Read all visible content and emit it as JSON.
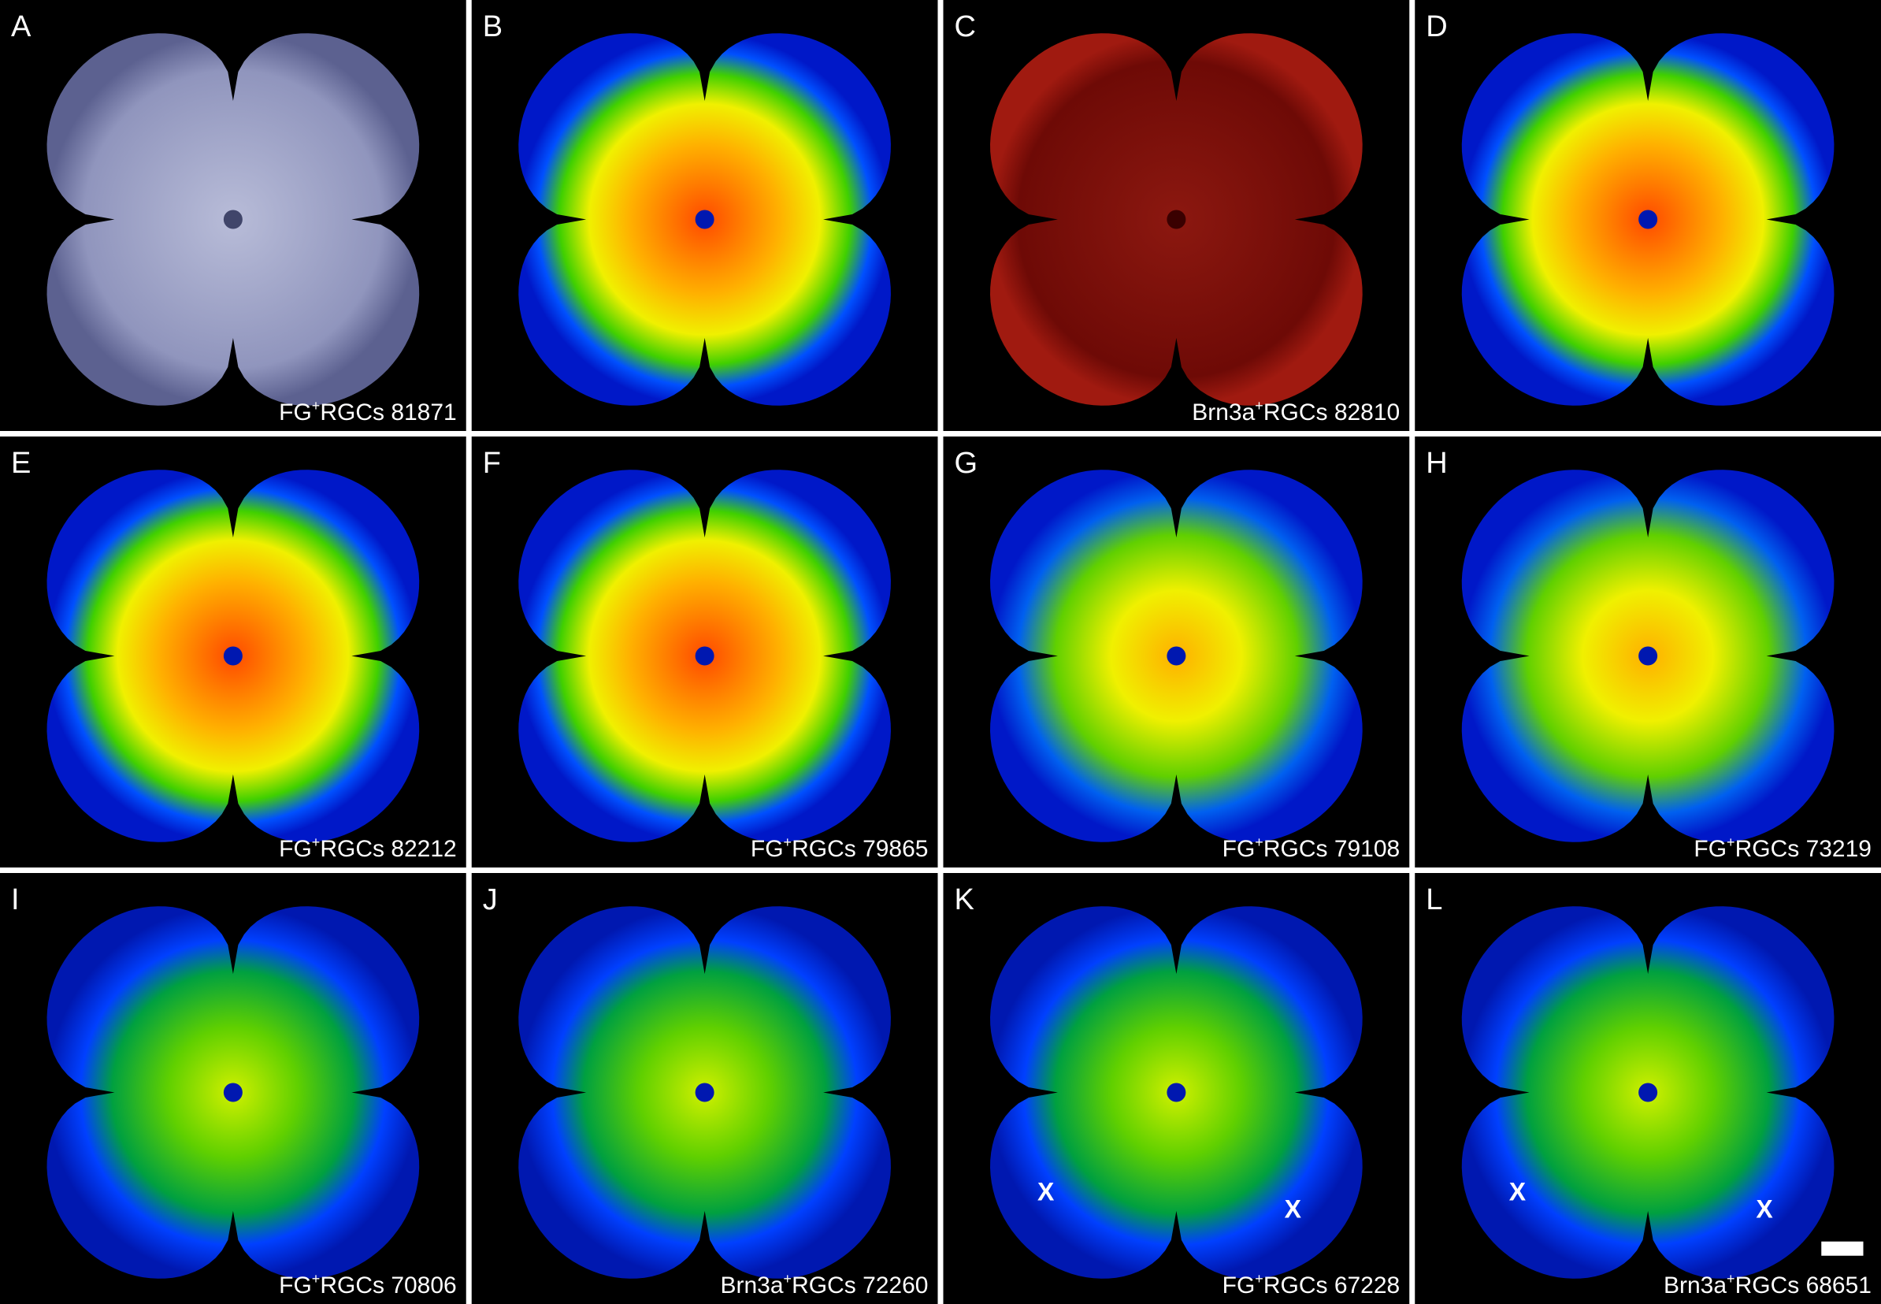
{
  "panels": [
    {
      "letter": "A",
      "label": {
        "marker": "FG",
        "sup": "+",
        "text": "RGCs 81871"
      }
    },
    {
      "letter": "B"
    },
    {
      "letter": "C",
      "label": {
        "marker": "Brn3a",
        "sup": "+",
        "text": "RGCs 82810"
      }
    },
    {
      "letter": "D"
    },
    {
      "letter": "E",
      "label": {
        "marker": "FG",
        "sup": "+",
        "text": "RGCs 82212"
      }
    },
    {
      "letter": "F",
      "label": {
        "marker": "FG",
        "sup": "+",
        "text": "RGCs 79865"
      }
    },
    {
      "letter": "G",
      "label": {
        "marker": "FG",
        "sup": "+",
        "text": "RGCs 79108"
      }
    },
    {
      "letter": "H",
      "label": {
        "marker": "FG",
        "sup": "+",
        "text": "RGCs 73219"
      }
    },
    {
      "letter": "I",
      "label": {
        "marker": "FG",
        "sup": "+",
        "text": "RGCs 70806"
      }
    },
    {
      "letter": "J",
      "label": {
        "marker": "Brn3a",
        "sup": "+",
        "text": "RGCs 72260"
      }
    },
    {
      "letter": "K",
      "label": {
        "marker": "FG",
        "sup": "+",
        "text": "RGCs 67228"
      },
      "annotations": [
        "X",
        "X"
      ]
    },
    {
      "letter": "L",
      "label": {
        "marker": "Brn3a",
        "sup": "+",
        "text": "RGCs 68651"
      },
      "annotations": [
        "X",
        "X"
      ]
    }
  ]
}
